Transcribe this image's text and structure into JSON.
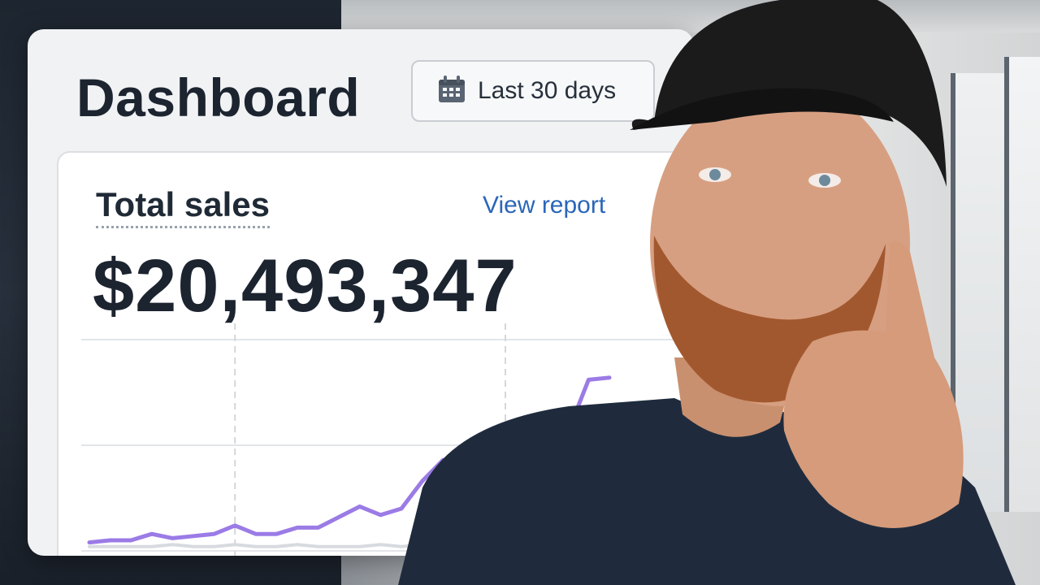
{
  "dashboard": {
    "title": "Dashboard",
    "date_range_label": "Last 30 days",
    "card": {
      "metric_title": "Total sales",
      "view_report_label": "View report",
      "metric_value": "$20,493,347"
    }
  },
  "colors": {
    "accent_line": "#9b7be6",
    "comparison_line": "#d7dadf",
    "link": "#2a66b8"
  },
  "chart_data": {
    "type": "line",
    "title": "",
    "xlabel": "",
    "ylabel": "",
    "grid": true,
    "ylim": [
      0,
      100
    ],
    "x": [
      1,
      2,
      3,
      4,
      5,
      6,
      7,
      8,
      9,
      10,
      11,
      12,
      13,
      14,
      15,
      16,
      17,
      18,
      19,
      20,
      21,
      22,
      23,
      24,
      25,
      26
    ],
    "series": [
      {
        "values": [
          4,
          5,
          5,
          8,
          6,
          7,
          8,
          12,
          8,
          8,
          11,
          11,
          16,
          21,
          17,
          20,
          33,
          43,
          37,
          42,
          42,
          40,
          45,
          56,
          81,
          82
        ]
      },
      {
        "values": [
          2,
          2,
          2,
          2,
          3,
          2,
          2,
          3,
          2,
          2,
          3,
          2,
          2,
          2,
          3,
          2,
          3,
          2,
          3,
          3,
          3,
          3,
          3,
          3,
          3,
          3
        ]
      }
    ]
  }
}
